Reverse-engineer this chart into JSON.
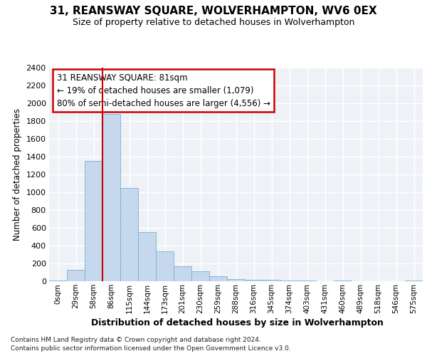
{
  "title": "31, REANSWAY SQUARE, WOLVERHAMPTON, WV6 0EX",
  "subtitle": "Size of property relative to detached houses in Wolverhampton",
  "xlabel": "Distribution of detached houses by size in Wolverhampton",
  "ylabel": "Number of detached properties",
  "bar_color": "#c5d8ed",
  "bar_edge_color": "#7aafd4",
  "background_color": "#eef2f7",
  "grid_color": "#ffffff",
  "annotation_text": "31 REANSWAY SQUARE: 81sqm\n← 19% of detached houses are smaller (1,079)\n80% of semi-detached houses are larger (4,556) →",
  "vline_color": "#cc0000",
  "vline_x": 3.0,
  "categories": [
    "0sqm",
    "29sqm",
    "58sqm",
    "86sqm",
    "115sqm",
    "144sqm",
    "173sqm",
    "201sqm",
    "230sqm",
    "259sqm",
    "288sqm",
    "316sqm",
    "345sqm",
    "374sqm",
    "403sqm",
    "431sqm",
    "460sqm",
    "489sqm",
    "518sqm",
    "546sqm",
    "575sqm"
  ],
  "values": [
    10,
    130,
    1350,
    1880,
    1050,
    550,
    340,
    165,
    110,
    60,
    25,
    20,
    15,
    10,
    5,
    0,
    5,
    0,
    0,
    0,
    10
  ],
  "ylim": [
    0,
    2400
  ],
  "yticks": [
    0,
    200,
    400,
    600,
    800,
    1000,
    1200,
    1400,
    1600,
    1800,
    2000,
    2200,
    2400
  ],
  "footnote1": "Contains HM Land Registry data © Crown copyright and database right 2024.",
  "footnote2": "Contains public sector information licensed under the Open Government Licence v3.0."
}
